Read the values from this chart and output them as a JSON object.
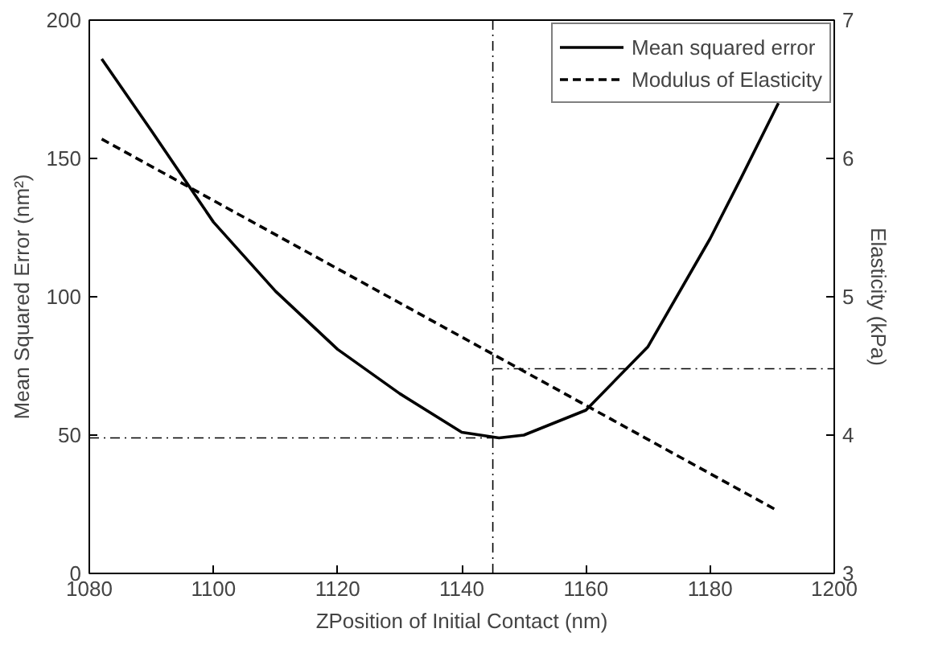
{
  "chart_data": {
    "type": "line",
    "xlabel": "ZPosition of Initial Contact (nm)",
    "ylabel": "Mean Squared Error (nm²)",
    "y2label": "Elasticity (kPa)",
    "xlim": [
      1080,
      1200
    ],
    "xticks": [
      1080,
      1100,
      1120,
      1140,
      1160,
      1180,
      1200
    ],
    "ylim": [
      0,
      200
    ],
    "yticks": [
      0,
      50,
      100,
      150,
      200
    ],
    "y2lim": [
      3,
      7
    ],
    "y2ticks": [
      3,
      4,
      5,
      6,
      7
    ],
    "grid": false,
    "legend": "top right",
    "series": [
      {
        "name": "Mean squared error",
        "color": "#000000",
        "line_style": "solid",
        "x": [
          1082,
          1090,
          1100,
          1110,
          1120,
          1130,
          1140,
          1146,
          1150,
          1160,
          1170,
          1180,
          1185,
          1191
        ],
        "values": [
          186,
          160,
          127,
          102,
          81,
          65,
          51,
          49,
          50,
          59,
          82,
          121,
          143,
          170
        ]
      },
      {
        "name": "Modulus of Elasticity",
        "color": "#000000",
        "line_style": "dashed",
        "axis": "y2",
        "x": [
          1082,
          1191
        ],
        "values": [
          6.14,
          3.45
        ]
      }
    ],
    "ref_lines": [
      {
        "axis": "x",
        "value": 1145,
        "line_style": "dashdot"
      },
      {
        "axis": "y",
        "value": 49,
        "line_style": "dashdot"
      },
      {
        "axis": "y2",
        "value": 4.48,
        "line_style": "dashdot"
      }
    ]
  }
}
